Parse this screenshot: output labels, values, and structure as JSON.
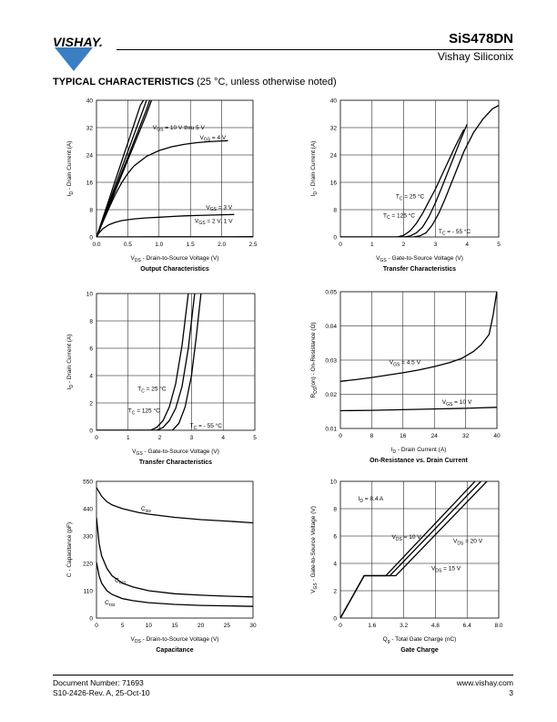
{
  "header": {
    "logo_text": "VISHAY.",
    "part_number": "SiS478DN",
    "company": "Vishay Siliconix",
    "brand_color": "#3a7fc1"
  },
  "section": {
    "title_bold": "TYPICAL CHARACTERISTICS",
    "title_rest": " (25 °C, unless otherwise noted)"
  },
  "footer": {
    "doc_number": "Document Number: 71693",
    "revision": "S10-2426-Rev. A, 25-Oct-10",
    "url": "www.vishay.com",
    "page": "3"
  },
  "chart_data": [
    {
      "id": "output",
      "type": "line",
      "title": "Output Characteristics",
      "xlabel": "VDS - Drain-to-Source Voltage (V)",
      "ylabel": "ID - Drain Current (A)",
      "xlim": [
        0,
        2.5
      ],
      "ylim": [
        0,
        40
      ],
      "xticks": [
        "0.0",
        "0.5",
        "1.0",
        "1.5",
        "2.0",
        "2.5"
      ],
      "yticks": [
        "0",
        "8",
        "16",
        "24",
        "32",
        "40"
      ],
      "grid": true,
      "series": [
        {
          "x": [
            0,
            0.1,
            0.2,
            0.3,
            0.4,
            0.5,
            0.6,
            0.7,
            0.75
          ],
          "y": [
            0,
            5.5,
            11,
            16.5,
            22,
            27.5,
            33,
            38.5,
            40
          ]
        },
        {
          "x": [
            0,
            0.1,
            0.2,
            0.3,
            0.4,
            0.5,
            0.6,
            0.7,
            0.8
          ],
          "y": [
            0,
            5,
            10,
            15,
            20,
            25,
            30,
            35,
            40
          ]
        },
        {
          "x": [
            0,
            0.1,
            0.2,
            0.3,
            0.4,
            0.5,
            0.6,
            0.7,
            0.8,
            0.85
          ],
          "y": [
            0,
            4.7,
            9.4,
            14,
            18.7,
            23.3,
            28,
            32.7,
            37.3,
            40
          ]
        },
        {
          "x": [
            0,
            0.1,
            0.2,
            0.3,
            0.4,
            0.5,
            0.6,
            0.7,
            0.8,
            0.88
          ],
          "y": [
            0,
            4.5,
            9,
            13.5,
            18,
            22.5,
            27,
            31.5,
            36,
            40
          ]
        },
        {
          "x": [
            0,
            0.1,
            0.2,
            0.3,
            0.4,
            0.5,
            0.6,
            0.8,
            1.0,
            1.2,
            1.4,
            1.6,
            1.8,
            2.0,
            2.1
          ],
          "y": [
            0,
            4.3,
            8.5,
            12.4,
            15.8,
            18.6,
            20.8,
            23.6,
            25.3,
            26.4,
            27.1,
            27.6,
            27.9,
            28.1,
            28.2
          ]
        },
        {
          "x": [
            0,
            0.05,
            0.1,
            0.2,
            0.3,
            0.4,
            0.6,
            0.8,
            1.0,
            1.2,
            1.4,
            1.6,
            1.8,
            2.0,
            2.2
          ],
          "y": [
            0,
            1.4,
            2.4,
            3.6,
            4.3,
            4.8,
            5.3,
            5.6,
            5.8,
            6.0,
            6.2,
            6.3,
            6.4,
            6.5,
            6.6
          ]
        },
        {
          "x": [
            0,
            0.2,
            0.5,
            1.0,
            1.5,
            2.0,
            2.5
          ],
          "y": [
            0,
            0.02,
            0.03,
            0.04,
            0.05,
            0.06,
            0.07
          ]
        }
      ],
      "annotations": [
        "VGS = 10 V thru 5 V",
        "VGS = 4 V",
        "VGS = 3 V",
        "VGS = 2 V, 1 V"
      ]
    },
    {
      "id": "transfer1",
      "type": "line",
      "title": "Transfer Characteristics",
      "xlabel": "VGS - Gate-to-Source Voltage (V)",
      "ylabel": "ID - Drain Current (A)",
      "xlim": [
        0,
        5
      ],
      "ylim": [
        0,
        40
      ],
      "xticks": [
        "0",
        "1",
        "2",
        "3",
        "4",
        "5"
      ],
      "yticks": [
        "0",
        "8",
        "16",
        "24",
        "32",
        "40"
      ],
      "grid": true,
      "series": [
        {
          "name": "TC = 25 °C",
          "x": [
            0,
            2.0,
            2.2,
            2.4,
            2.6,
            2.8,
            3.0,
            3.2,
            3.5,
            3.8,
            4.0
          ],
          "y": [
            0,
            0,
            0.3,
            1.2,
            3,
            6,
            10,
            14.5,
            21.5,
            28.5,
            33
          ]
        },
        {
          "name": "TC = 125 °C",
          "x": [
            0,
            1.8,
            2.0,
            2.2,
            2.4,
            2.6,
            2.8,
            3.0,
            3.3,
            3.6,
            3.9
          ],
          "y": [
            0,
            0,
            0.5,
            1.8,
            4,
            7,
            10.5,
            14,
            20,
            26,
            31.5
          ]
        },
        {
          "name": "TC = - 55 °C",
          "x": [
            0,
            2.3,
            2.5,
            2.7,
            2.9,
            3.1,
            3.3,
            3.6,
            3.9,
            4.2,
            4.5,
            4.8,
            5.0
          ],
          "y": [
            0,
            0,
            0.3,
            1.2,
            3.5,
            6.8,
            11,
            18,
            25,
            30.5,
            34.5,
            37.5,
            38.5
          ]
        }
      ]
    },
    {
      "id": "transfer2",
      "type": "line",
      "title": "Transfer Characteristics",
      "xlabel": "VGS - Gate-to-Source Voltage (V)",
      "ylabel": "ID - Drain Current (A)",
      "xlim": [
        0,
        5
      ],
      "ylim": [
        0,
        10
      ],
      "xticks": [
        "0",
        "1",
        "2",
        "3",
        "4",
        "5"
      ],
      "yticks": [
        "0",
        "2",
        "4",
        "6",
        "8",
        "10"
      ],
      "grid": true,
      "series": [
        {
          "name": "TC = 25 °C",
          "x": [
            0,
            1.9,
            2.1,
            2.3,
            2.5,
            2.7,
            2.9,
            3.1
          ],
          "y": [
            0,
            0,
            0.2,
            0.7,
            1.6,
            3.2,
            6,
            10
          ]
        },
        {
          "name": "TC = 125 °C",
          "x": [
            0,
            1.7,
            1.9,
            2.1,
            2.3,
            2.5,
            2.7,
            2.9
          ],
          "y": [
            0,
            0,
            0.2,
            0.7,
            1.7,
            3.4,
            6.2,
            10
          ]
        },
        {
          "name": "TC = - 55 °C",
          "x": [
            0,
            2.4,
            2.6,
            2.8,
            3.0,
            3.15,
            3.3
          ],
          "y": [
            0,
            0,
            0.5,
            1.7,
            4,
            6.8,
            10
          ]
        }
      ]
    },
    {
      "id": "onres",
      "type": "line",
      "title": "On-Resistance vs. Drain Current",
      "xlabel": "ID - Drain Current (A)",
      "ylabel": "RDS(on) - On-Resistance (Ω)",
      "xlim": [
        0,
        40
      ],
      "ylim": [
        0.01,
        0.05
      ],
      "xticks": [
        "0",
        "8",
        "16",
        "24",
        "32",
        "40"
      ],
      "yticks": [
        "0.01",
        "0.02",
        "0.03",
        "0.04",
        "0.05"
      ],
      "grid": true,
      "series": [
        {
          "name": "VGS = 4.5 V",
          "x": [
            0,
            4,
            8,
            12,
            16,
            20,
            24,
            28,
            31,
            34,
            36,
            38,
            39,
            40
          ],
          "y": [
            0.0238,
            0.0243,
            0.0249,
            0.0256,
            0.0263,
            0.0271,
            0.0281,
            0.0293,
            0.0305,
            0.0325,
            0.0345,
            0.0375,
            0.043,
            0.0503
          ]
        },
        {
          "name": "VGS = 10 V",
          "x": [
            0,
            8,
            16,
            24,
            32,
            40
          ],
          "y": [
            0.0152,
            0.0153,
            0.0155,
            0.0157,
            0.0159,
            0.0162
          ]
        }
      ]
    },
    {
      "id": "capacitance",
      "type": "line",
      "title": "Capacitance",
      "xlabel": "VDS - Drain-to-Source Voltage (V)",
      "ylabel": "C - Capacitance (pF)",
      "xlim": [
        0,
        30
      ],
      "ylim": [
        0,
        550
      ],
      "xticks": [
        "0",
        "5",
        "10",
        "15",
        "20",
        "25",
        "30"
      ],
      "yticks": [
        "0",
        "110",
        "220",
        "330",
        "440",
        "550"
      ],
      "grid": false,
      "series": [
        {
          "name": "Ciss",
          "x": [
            0,
            1,
            2,
            3,
            5,
            8,
            10,
            15,
            20,
            25,
            30
          ],
          "y": [
            525,
            490,
            468,
            455,
            440,
            425,
            418,
            405,
            396,
            390,
            383
          ]
        },
        {
          "name": "Coss",
          "x": [
            0,
            0.5,
            1,
            2,
            3,
            5,
            7,
            10,
            15,
            20,
            25,
            30
          ],
          "y": [
            405,
            300,
            250,
            200,
            170,
            140,
            125,
            110,
            98,
            92,
            88,
            85
          ]
        },
        {
          "name": "Crss",
          "x": [
            0,
            0.5,
            1,
            2,
            3,
            5,
            7,
            10,
            15,
            20,
            25,
            30
          ],
          "y": [
            225,
            170,
            140,
            110,
            95,
            78,
            70,
            62,
            55,
            51,
            49,
            47
          ]
        }
      ]
    },
    {
      "id": "gatecharge",
      "type": "line",
      "title": "Gate Charge",
      "xlabel": "Qg - Total Gate Charge (nC)",
      "ylabel": "VGS - Gate-to-Source Voltage (V)",
      "xlim": [
        0,
        8
      ],
      "ylim": [
        0,
        10
      ],
      "xticks": [
        "0",
        "1.6",
        "3.2",
        "4.8",
        "6.4",
        "8.0"
      ],
      "yticks": [
        "0",
        "2",
        "4",
        "6",
        "8",
        "10"
      ],
      "grid": true,
      "series": [
        {
          "name": "VDS = 10 V",
          "x": [
            0,
            1.2,
            2.3,
            6.8
          ],
          "y": [
            0,
            3.1,
            3.1,
            10
          ]
        },
        {
          "name": "VDS = 15 V",
          "x": [
            0,
            1.2,
            2.5,
            7.1
          ],
          "y": [
            0,
            3.1,
            3.1,
            10
          ]
        },
        {
          "name": "VDS = 20 V",
          "x": [
            0,
            1.2,
            2.8,
            7.4
          ],
          "y": [
            0,
            3.1,
            3.1,
            10
          ]
        }
      ],
      "annotations": [
        "ID = 8.4 A"
      ]
    }
  ]
}
